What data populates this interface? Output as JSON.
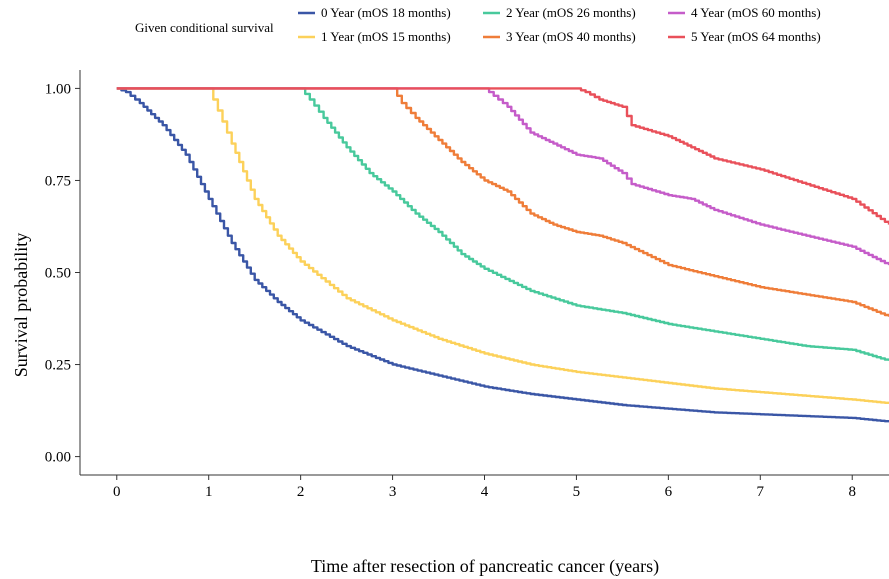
{
  "chart_data": {
    "type": "line",
    "xlabel": "Time after resection of pancreatic cancer (years)",
    "ylabel": "Survival probability",
    "xlim": [
      -0.4,
      8.4
    ],
    "ylim": [
      -0.05,
      1.05
    ],
    "x_ticks": [
      "0",
      "1",
      "2",
      "3",
      "4",
      "5",
      "6",
      "7",
      "8"
    ],
    "y_ticks": [
      "0.00",
      "0.25",
      "0.50",
      "0.75",
      "1.00"
    ],
    "legend_title": "Given conditional survival",
    "legend_position": "top",
    "grid": false,
    "series": [
      {
        "name": "0 Year (mOS 18 months)",
        "color": "#3a56a6",
        "x": [
          0,
          0.1,
          0.25,
          0.5,
          0.75,
          1.0,
          1.25,
          1.5,
          1.75,
          2.0,
          2.5,
          3.0,
          3.5,
          4.0,
          4.5,
          5.0,
          5.5,
          6.0,
          6.5,
          7.0,
          7.5,
          8.0,
          8.4
        ],
        "y": [
          1.0,
          0.99,
          0.96,
          0.9,
          0.82,
          0.7,
          0.58,
          0.48,
          0.42,
          0.37,
          0.3,
          0.25,
          0.22,
          0.19,
          0.17,
          0.155,
          0.14,
          0.13,
          0.12,
          0.115,
          0.11,
          0.105,
          0.095
        ]
      },
      {
        "name": "1 Year (mOS 15 months)",
        "color": "#fcd15a",
        "x": [
          0,
          1.0,
          1.1,
          1.25,
          1.5,
          1.75,
          2.0,
          2.5,
          3.0,
          3.5,
          4.0,
          4.5,
          5.0,
          5.5,
          6.0,
          6.5,
          7.0,
          7.5,
          8.0,
          8.4
        ],
        "y": [
          1.0,
          1.0,
          0.94,
          0.85,
          0.7,
          0.6,
          0.53,
          0.43,
          0.37,
          0.32,
          0.28,
          0.25,
          0.23,
          0.215,
          0.2,
          0.185,
          0.175,
          0.165,
          0.155,
          0.145
        ]
      },
      {
        "name": "2 Year (mOS 26 months)",
        "color": "#48c99c",
        "x": [
          0,
          2.0,
          2.1,
          2.25,
          2.5,
          2.75,
          3.0,
          3.25,
          3.5,
          3.75,
          4.0,
          4.5,
          5.0,
          5.5,
          6.0,
          6.5,
          7.0,
          7.5,
          8.0,
          8.4
        ],
        "y": [
          1.0,
          1.0,
          0.97,
          0.92,
          0.84,
          0.77,
          0.72,
          0.66,
          0.61,
          0.55,
          0.51,
          0.45,
          0.41,
          0.39,
          0.36,
          0.34,
          0.32,
          0.3,
          0.29,
          0.26
        ]
      },
      {
        "name": "3 Year (mOS 40 months)",
        "color": "#ef7d39",
        "x": [
          0,
          3.0,
          3.1,
          3.25,
          3.5,
          3.75,
          4.0,
          4.25,
          4.5,
          4.75,
          5.0,
          5.25,
          5.5,
          6.0,
          6.5,
          7.0,
          7.5,
          8.0,
          8.4
        ],
        "y": [
          1.0,
          1.0,
          0.96,
          0.92,
          0.86,
          0.8,
          0.75,
          0.72,
          0.66,
          0.63,
          0.61,
          0.6,
          0.58,
          0.52,
          0.49,
          0.46,
          0.44,
          0.42,
          0.38
        ]
      },
      {
        "name": "4 Year (mOS 60 months)",
        "color": "#c55cc9",
        "x": [
          0,
          4.0,
          4.1,
          4.25,
          4.5,
          4.75,
          5.0,
          5.25,
          5.5,
          5.6,
          6.0,
          6.25,
          6.5,
          7.0,
          7.5,
          8.0,
          8.4
        ],
        "y": [
          1.0,
          1.0,
          0.98,
          0.95,
          0.88,
          0.85,
          0.82,
          0.81,
          0.77,
          0.74,
          0.71,
          0.7,
          0.67,
          0.63,
          0.6,
          0.57,
          0.52
        ]
      },
      {
        "name": "5 Year (mOS 64 months)",
        "color": "#e9505a",
        "x": [
          0,
          5.0,
          5.1,
          5.25,
          5.5,
          5.6,
          6.0,
          6.25,
          6.5,
          7.0,
          7.5,
          8.0,
          8.4
        ],
        "y": [
          1.0,
          1.0,
          0.99,
          0.97,
          0.95,
          0.9,
          0.87,
          0.84,
          0.81,
          0.78,
          0.74,
          0.7,
          0.63
        ]
      }
    ]
  }
}
